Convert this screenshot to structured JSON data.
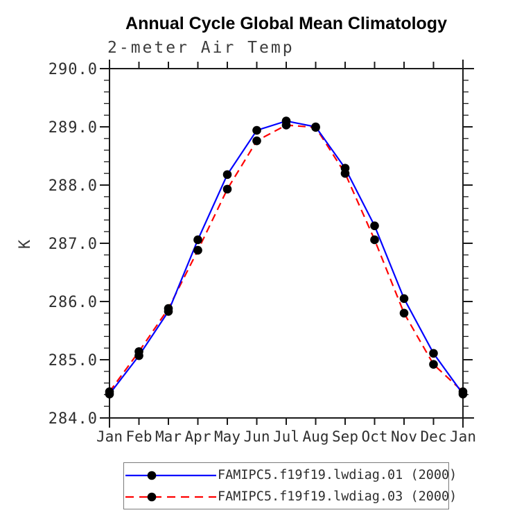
{
  "figure": {
    "title": "Annual Cycle Global Mean Climatology",
    "subtitle": "2-meter Air Temp",
    "y_axis_label": "K"
  },
  "legend": {
    "position": "bottom",
    "items": [
      {
        "label": "FAMIPC5.f19f19.lwdiag.01 (2000)",
        "color": "#0000ff",
        "line_style": "solid",
        "marker": "black-dot"
      },
      {
        "label": "FAMIPC5.f19f19.lwdiag.03 (2000)",
        "color": "#ff0000",
        "line_style": "dashed",
        "marker": "black-dot"
      }
    ]
  },
  "chart_data": {
    "type": "line",
    "title": "Annual Cycle Global Mean Climatology",
    "subtitle": "2-meter Air Temp",
    "xlabel": "",
    "ylabel": "K",
    "categories": [
      "Jan",
      "Feb",
      "Mar",
      "Apr",
      "May",
      "Jun",
      "Jul",
      "Aug",
      "Sep",
      "Oct",
      "Nov",
      "Dec",
      "Jan"
    ],
    "ylim": [
      284.0,
      290.0
    ],
    "ytick_major_step": 1.0,
    "ytick_minor_step": 0.2,
    "ytick_labels": [
      "284.0",
      "285.0",
      "286.0",
      "287.0",
      "288.0",
      "289.0",
      "290.0"
    ],
    "grid": false,
    "legend_position": "bottom",
    "marker_color": "#000000",
    "series": [
      {
        "name": "FAMIPC5.f19f19.lwdiag.01 (2000)",
        "color": "#0000ff",
        "style": "solid",
        "marker": "circle",
        "values": [
          284.41,
          285.07,
          285.83,
          287.06,
          288.18,
          288.94,
          289.1,
          289.0,
          288.29,
          287.3,
          286.05,
          285.11,
          284.41
        ]
      },
      {
        "name": "FAMIPC5.f19f19.lwdiag.03 (2000)",
        "color": "#ff0000",
        "style": "dashed",
        "marker": "circle",
        "values": [
          284.45,
          285.14,
          285.88,
          286.88,
          287.93,
          288.76,
          289.03,
          288.99,
          288.2,
          287.06,
          285.8,
          284.92,
          284.45
        ]
      }
    ]
  }
}
